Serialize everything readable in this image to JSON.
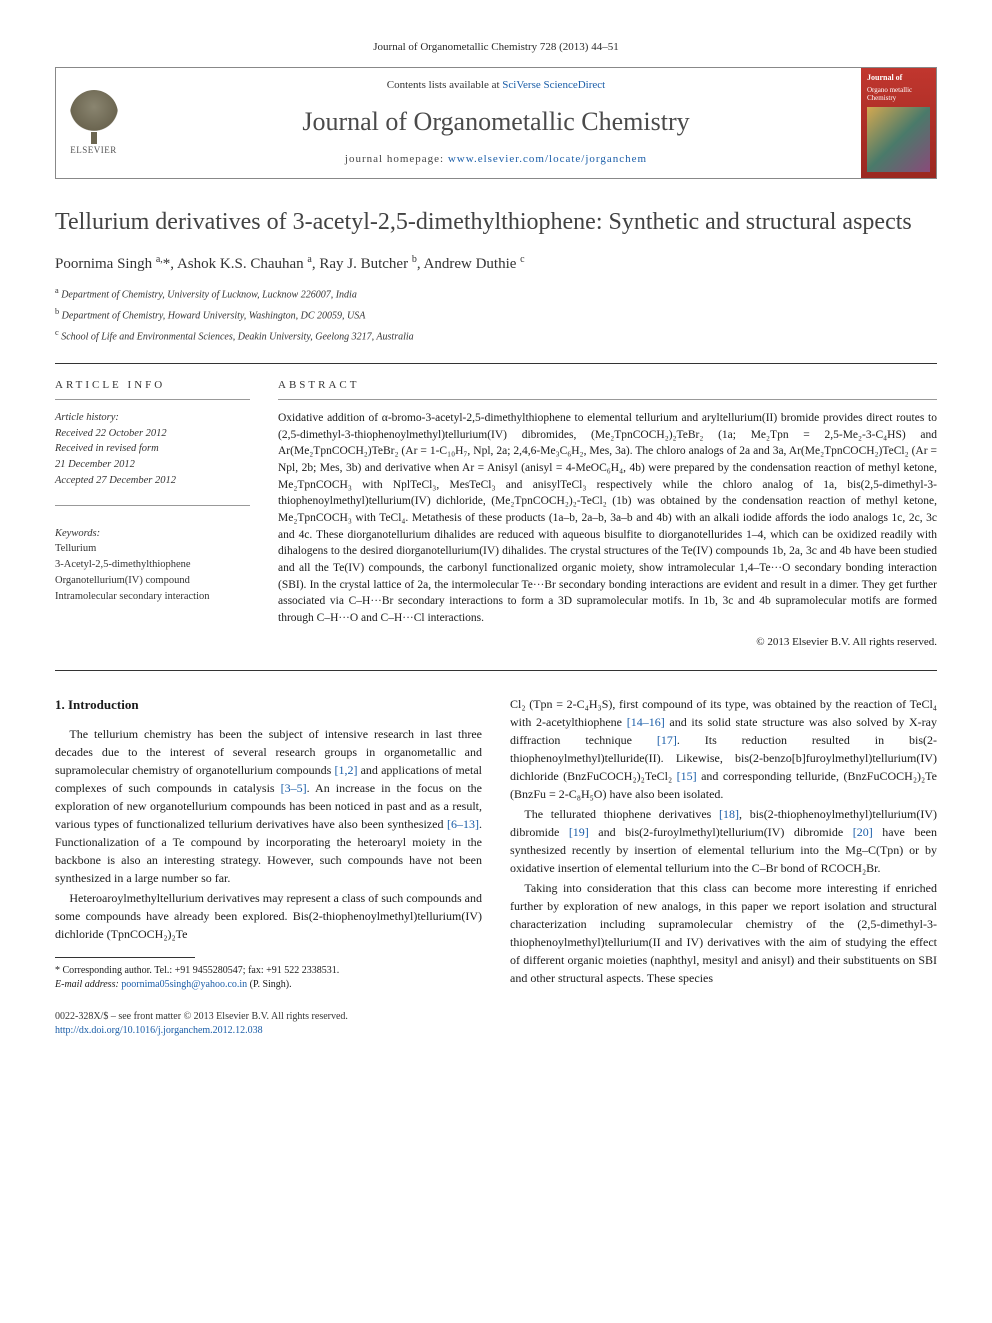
{
  "journal_ref": "Journal of Organometallic Chemistry 728 (2013) 44–51",
  "header": {
    "contents_prefix": "Contents lists available at ",
    "contents_link": "SciVerse ScienceDirect",
    "journal_title": "Journal of Organometallic Chemistry",
    "homepage_prefix": "journal homepage: ",
    "homepage_link": "www.elsevier.com/locate/jorganchem",
    "elsevier_label": "ELSEVIER",
    "cover_line1": "Journal of",
    "cover_line2": "Organo metallic",
    "cover_line3": "Chemistry"
  },
  "article": {
    "title": "Tellurium derivatives of 3-acetyl-2,5-dimethylthiophene: Synthetic and structural aspects",
    "authors_html": "Poornima Singh <sup>a,</sup>*, Ashok K.S. Chauhan <sup>a</sup>, Ray J. Butcher <sup>b</sup>, Andrew Duthie <sup>c</sup>",
    "affiliations": [
      {
        "sup": "a",
        "text": "Department of Chemistry, University of Lucknow, Lucknow 226007, India"
      },
      {
        "sup": "b",
        "text": "Department of Chemistry, Howard University, Washington, DC 20059, USA"
      },
      {
        "sup": "c",
        "text": "School of Life and Environmental Sciences, Deakin University, Geelong 3217, Australia"
      }
    ]
  },
  "info": {
    "label": "ARTICLE INFO",
    "history_label": "Article history:",
    "received": "Received 22 October 2012",
    "revised1": "Received in revised form",
    "revised2": "21 December 2012",
    "accepted": "Accepted 27 December 2012",
    "keywords_label": "Keywords:",
    "keywords": [
      "Tellurium",
      "3-Acetyl-2,5-dimethylthiophene",
      "Organotellurium(IV) compound",
      "Intramolecular secondary interaction"
    ]
  },
  "abstract": {
    "label": "ABSTRACT",
    "text": "Oxidative addition of α-bromo-3-acetyl-2,5-dimethylthiophene to elemental tellurium and aryltellurium(II) bromide provides direct routes to (2,5-dimethyl-3-thiophenoylmethyl)tellurium(IV) dibromides, (Me₂TpnCOCH₂)₂TeBr₂ (1a; Me₂Tpn = 2,5-Me₂-3-C₄HS) and Ar(Me₂TpnCOCH₂)TeBr₂ (Ar = 1-C₁₀H₇, Npl, 2a; 2,4,6-Me₃C₆H₂, Mes, 3a). The chloro analogs of 2a and 3a, Ar(Me₂TpnCOCH₂)TeCl₂ (Ar = Npl, 2b; Mes, 3b) and derivative when Ar = Anisyl (anisyl = 4-MeOC₆H₄, 4b) were prepared by the condensation reaction of methyl ketone, Me₂TpnCOCH₃ with NplTeCl₃, MesTeCl₃ and anisylTeCl₃ respectively while the chloro analog of 1a, bis(2,5-dimethyl-3-thiophenoylmethyl)tellurium(IV) dichloride, (Me₂TpnCOCH₂)₂-TeCl₂ (1b) was obtained by the condensation reaction of methyl ketone, Me₂TpnCOCH₃ with TeCl₄. Metathesis of these products (1a–b, 2a–b, 3a–b and 4b) with an alkali iodide affords the iodo analogs 1c, 2c, 3c and 4c. These diorganotellurium dihalides are reduced with aqueous bisulfite to diorganotellurides 1–4, which can be oxidized readily with dihalogens to the desired diorganotellurium(IV) dihalides. The crystal structures of the Te(IV) compounds 1b, 2a, 3c and 4b have been studied and all the Te(IV) compounds, the carbonyl functionalized organic moiety, show intramolecular 1,4–Te···O secondary bonding interaction (SBI). In the crystal lattice of 2a, the intermolecular Te···Br secondary bonding interactions are evident and result in a dimer. They get further associated via C–H···Br secondary interactions to form a 3D supramolecular motifs. In 1b, 3c and 4b supramolecular motifs are formed through C–H···O and C–H···Cl interactions.",
    "copyright": "© 2013 Elsevier B.V. All rights reserved."
  },
  "body": {
    "heading": "1. Introduction",
    "p1_a": "The tellurium chemistry has been the subject of intensive research in last three decades due to the interest of several research groups in organometallic and supramolecular chemistry of organotellurium compounds ",
    "p1_r1": "[1,2]",
    "p1_b": " and applications of metal complexes of such compounds in catalysis ",
    "p1_r2": "[3–5]",
    "p1_c": ". An increase in the focus on the exploration of new organotellurium compounds has been noticed in past and as a result, various types of functionalized tellurium derivatives have also been synthesized ",
    "p1_r3": "[6–13]",
    "p1_d": ". Functionalization of a Te compound by incorporating the heteroaryl moiety in the backbone is also an interesting strategy. However, such compounds have not been synthesized in a large number so far.",
    "p2": "Heteroaroylmethyltellurium derivatives may represent a class of such compounds and some compounds have already been explored. Bis(2-thiophenoylmethyl)tellurium(IV) dichloride (TpnCOCH₂)₂Te",
    "p3_a": "Cl₂ (Tpn = 2-C₄H₃S), first compound of its type, was obtained by the reaction of TeCl₄ with 2-acetylthiophene ",
    "p3_r1": "[14–16]",
    "p3_b": " and its solid state structure was also solved by X-ray diffraction technique ",
    "p3_r2": "[17]",
    "p3_c": ". Its reduction resulted in bis(2-thiophenoylmethyl)telluride(II). Likewise, bis(2-benzo[b]furoylmethyl)tellurium(IV) dichloride (BnzFuCOCH₂)₂TeCl₂ ",
    "p3_r3": "[15]",
    "p3_d": " and corresponding telluride, (BnzFuCOCH₂)₂Te (BnzFu = 2-C₈H₅O) have also been isolated.",
    "p4_a": "The tellurated thiophene derivatives ",
    "p4_r1": "[18]",
    "p4_b": ", bis(2-thiophenoylmethyl)tellurium(IV) dibromide ",
    "p4_r2": "[19]",
    "p4_c": " and bis(2-furoylmethyl)tellurium(IV) dibromide ",
    "p4_r3": "[20]",
    "p4_d": " have been synthesized recently by insertion of elemental tellurium into the Mg–C(Tpn) or by oxidative insertion of elemental tellurium into the C–Br bond of RCOCH₂Br.",
    "p5": "Taking into consideration that this class can become more interesting if enriched further by exploration of new analogs, in this paper we report isolation and structural characterization including supramolecular chemistry of the (2,5-dimethyl-3-thiophenoylmethyl)tellurium(II and IV) derivatives with the aim of studying the effect of different organic moieties (naphthyl, mesityl and anisyl) and their substituents on SBI and other structural aspects. These species"
  },
  "footnote": {
    "corr": "* Corresponding author. Tel.: +91 9455280547; fax: +91 522 2338531.",
    "email_label": "E-mail address: ",
    "email": "poornima05singh@yahoo.co.in",
    "email_suffix": " (P. Singh)."
  },
  "footer": {
    "left1": "0022-328X/$ – see front matter © 2013 Elsevier B.V. All rights reserved.",
    "left2_prefix": "",
    "doi": "http://dx.doi.org/10.1016/j.jorganchem.2012.12.038"
  }
}
